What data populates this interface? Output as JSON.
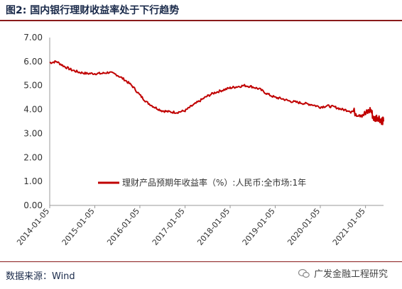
{
  "figure": {
    "title": "图2:  国内银行理财收益率处于下行趋势",
    "source": "数据来源：Wind",
    "watermark": "广发金融工程研究",
    "watermark_icon": "wechat-icon",
    "accent_color": "#c00000",
    "rule_color": "#8a1a1a"
  },
  "chart_data": {
    "type": "line",
    "x_ticks": [
      "2014-01-05",
      "2015-01-05",
      "2016-01-05",
      "2017-01-05",
      "2018-01-05",
      "2019-01-05",
      "2020-01-05",
      "2021-01-05"
    ],
    "y_ticks": [
      "0.00",
      "1.00",
      "2.00",
      "3.00",
      "4.00",
      "5.00",
      "6.00",
      "7.00"
    ],
    "ylim": [
      0,
      7
    ],
    "xlim": [
      "2014-01-05",
      "2021-05-31"
    ],
    "grid": false,
    "legend_position": "center",
    "series": [
      {
        "name": "理财产品预期年收益率（%）:人民币:全市场:1年",
        "color": "#c00000",
        "x": [
          "2014-01-05",
          "2014-03-01",
          "2014-05-01",
          "2014-07-01",
          "2014-09-01",
          "2014-11-01",
          "2015-01-05",
          "2015-03-01",
          "2015-05-01",
          "2015-07-01",
          "2015-09-01",
          "2015-11-01",
          "2016-01-05",
          "2016-03-01",
          "2016-05-01",
          "2016-07-01",
          "2016-09-01",
          "2016-11-01",
          "2017-01-05",
          "2017-03-01",
          "2017-05-01",
          "2017-07-01",
          "2017-09-01",
          "2017-11-01",
          "2018-01-05",
          "2018-03-01",
          "2018-05-01",
          "2018-07-01",
          "2018-09-01",
          "2018-11-01",
          "2019-01-05",
          "2019-03-01",
          "2019-05-01",
          "2019-07-01",
          "2019-09-01",
          "2019-11-01",
          "2020-01-05",
          "2020-03-01",
          "2020-05-01",
          "2020-07-01",
          "2020-09-01",
          "2020-11-01",
          "2021-01-05",
          "2021-02-15",
          "2021-03-15",
          "2021-04-15",
          "2021-05-15",
          "2021-05-31"
        ],
        "values": [
          5.95,
          6.0,
          5.8,
          5.65,
          5.55,
          5.5,
          5.5,
          5.5,
          5.55,
          5.45,
          5.25,
          5.0,
          4.6,
          4.3,
          4.1,
          3.95,
          3.9,
          3.88,
          3.95,
          4.15,
          4.35,
          4.55,
          4.7,
          4.8,
          4.9,
          4.95,
          5.0,
          4.95,
          4.85,
          4.65,
          4.5,
          4.45,
          4.35,
          4.3,
          4.25,
          4.2,
          4.1,
          4.15,
          4.1,
          4.0,
          3.95,
          3.85,
          3.8,
          4.0,
          3.6,
          3.7,
          3.55,
          3.5
        ]
      }
    ]
  }
}
